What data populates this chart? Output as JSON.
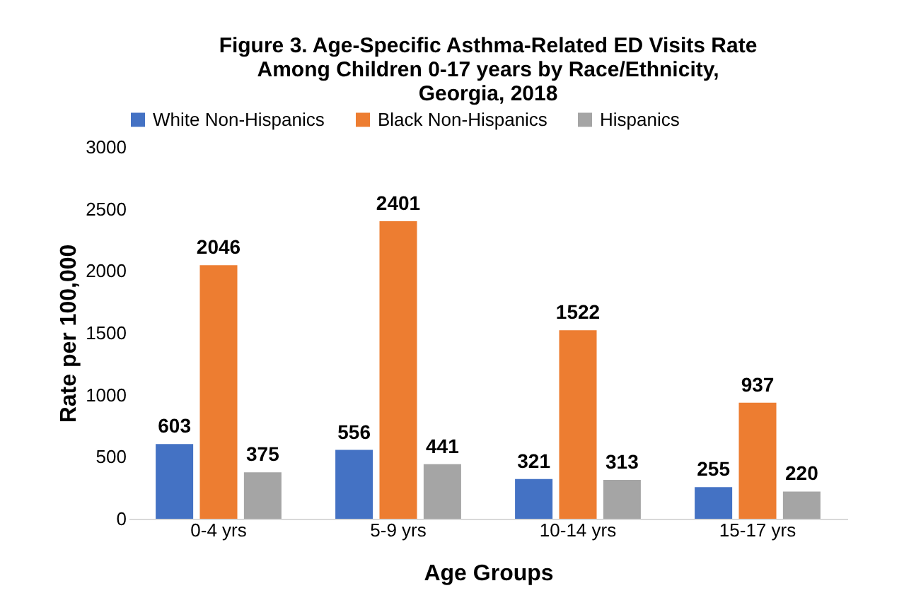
{
  "chart_data": {
    "type": "bar",
    "title": [
      "Figure 3. Age-Specific Asthma-Related ED Visits Rate",
      "Among Children 0-17 years by Race/Ethnicity,",
      "Georgia, 2018"
    ],
    "xlabel": "Age Groups",
    "ylabel": "Rate per 100,000",
    "categories": [
      "0-4 yrs",
      "5-9 yrs",
      "10-14 yrs",
      "15-17 yrs"
    ],
    "series": [
      {
        "name": "White Non-Hispanics",
        "color": "#4472c4",
        "values": [
          603,
          556,
          321,
          255
        ]
      },
      {
        "name": "Black Non-Hispanics",
        "color": "#ed7d31",
        "values": [
          2046,
          2401,
          1522,
          937
        ]
      },
      {
        "name": "Hispanics",
        "color": "#a5a5a5",
        "values": [
          375,
          441,
          313,
          220
        ]
      }
    ],
    "ylim": [
      0,
      3000
    ],
    "yticks": [
      0,
      500,
      1000,
      1500,
      2000,
      2500,
      3000
    ],
    "grid": false,
    "legend": "top",
    "data_labels": true
  }
}
